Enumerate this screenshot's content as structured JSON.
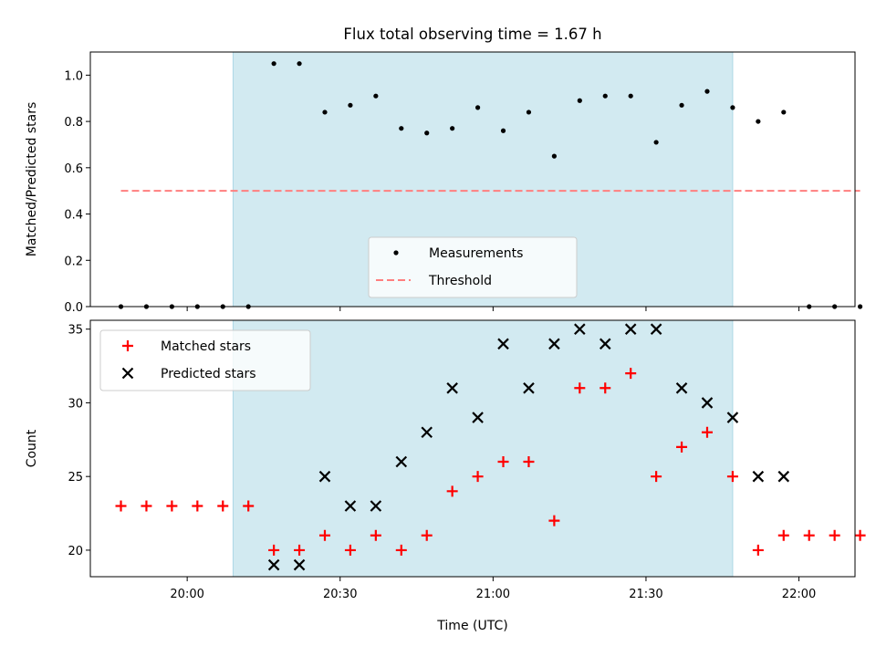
{
  "chart_data": {
    "title": "Flux total observing time = 1.67 h",
    "xlabel": "Time (UTC)",
    "x_tick_labels": [
      "20:00",
      "20:30",
      "21:00",
      "21:30",
      "22:00"
    ],
    "x_ticks": [
      "20:00",
      "20:30",
      "21:00",
      "21:30",
      "22:00"
    ],
    "xlim": [
      "19:41",
      "22:11"
    ],
    "shaded_interval": {
      "start": "20:09",
      "end": "21:47",
      "color": "#add8e6"
    },
    "times": [
      "19:47",
      "19:52",
      "19:57",
      "20:02",
      "20:07",
      "20:12",
      "20:17",
      "20:22",
      "20:27",
      "20:32",
      "20:37",
      "20:42",
      "20:47",
      "20:52",
      "20:57",
      "21:02",
      "21:07",
      "21:12",
      "21:17",
      "21:22",
      "21:27",
      "21:32",
      "21:37",
      "21:42",
      "21:47",
      "21:52",
      "21:57",
      "22:02",
      "22:07",
      "22:12"
    ],
    "panels": [
      {
        "type": "scatter",
        "ylabel": "Matched/Predicted stars",
        "ylim": [
          0,
          1.1
        ],
        "y_ticks": [
          0.0,
          0.2,
          0.4,
          0.6,
          0.8,
          1.0
        ],
        "y_tick_labels": [
          "0.0",
          "0.2",
          "0.4",
          "0.6",
          "0.8",
          "1.0"
        ],
        "legend_position": "lower-center",
        "series": [
          {
            "name": "Measurements",
            "marker": "dot",
            "color": "#000000",
            "x": [
              "19:47",
              "19:52",
              "19:57",
              "20:02",
              "20:07",
              "20:12",
              "20:17",
              "20:22",
              "20:27",
              "20:32",
              "20:37",
              "20:42",
              "20:47",
              "20:52",
              "20:57",
              "21:02",
              "21:07",
              "21:12",
              "21:17",
              "21:22",
              "21:27",
              "21:32",
              "21:37",
              "21:42",
              "21:47",
              "21:52",
              "21:57",
              "22:02",
              "22:07",
              "22:12"
            ],
            "y": [
              0.0,
              0.0,
              0.0,
              0.0,
              0.0,
              0.0,
              1.05,
              1.05,
              0.84,
              0.87,
              0.91,
              0.77,
              0.75,
              0.77,
              0.86,
              0.76,
              0.84,
              0.65,
              0.89,
              0.91,
              0.91,
              0.71,
              0.87,
              0.93,
              0.86,
              0.8,
              0.84,
              0.0,
              0.0,
              0.0
            ]
          },
          {
            "name": "Threshold",
            "marker": "dashed-line",
            "color": "#ff7f7f",
            "x": [
              "19:47",
              "22:12"
            ],
            "y": [
              0.5,
              0.5
            ]
          }
        ]
      },
      {
        "type": "scatter",
        "ylabel": "Count",
        "ylim": [
          18.2,
          35.6
        ],
        "y_ticks": [
          20,
          25,
          30,
          35
        ],
        "y_tick_labels": [
          "20",
          "25",
          "30",
          "35"
        ],
        "legend_position": "top-left",
        "series": [
          {
            "name": "Matched stars",
            "marker": "plus",
            "color": "#ff0000",
            "x": [
              "19:47",
              "19:52",
              "19:57",
              "20:02",
              "20:07",
              "20:12",
              "20:17",
              "20:22",
              "20:27",
              "20:32",
              "20:37",
              "20:42",
              "20:47",
              "20:52",
              "20:57",
              "21:02",
              "21:07",
              "21:12",
              "21:17",
              "21:22",
              "21:27",
              "21:32",
              "21:37",
              "21:42",
              "21:47",
              "21:52",
              "21:57",
              "22:02",
              "22:07",
              "22:12"
            ],
            "y": [
              23,
              23,
              23,
              23,
              23,
              23,
              20,
              20,
              21,
              20,
              21,
              20,
              21,
              24,
              25,
              26,
              26,
              22,
              31,
              31,
              32,
              25,
              27,
              28,
              25,
              20,
              21,
              21,
              21,
              21
            ]
          },
          {
            "name": "Predicted stars",
            "marker": "x",
            "color": "#000000",
            "x": [
              "20:17",
              "20:22",
              "20:27",
              "20:32",
              "20:37",
              "20:42",
              "20:47",
              "20:52",
              "20:57",
              "21:02",
              "21:07",
              "21:12",
              "21:17",
              "21:22",
              "21:27",
              "21:32",
              "21:37",
              "21:42",
              "21:47",
              "21:52",
              "21:57"
            ],
            "y": [
              19,
              19,
              25,
              23,
              23,
              26,
              28,
              31,
              29,
              34,
              31,
              34,
              35,
              34,
              35,
              35,
              31,
              30,
              29,
              25,
              25
            ]
          }
        ]
      }
    ]
  }
}
